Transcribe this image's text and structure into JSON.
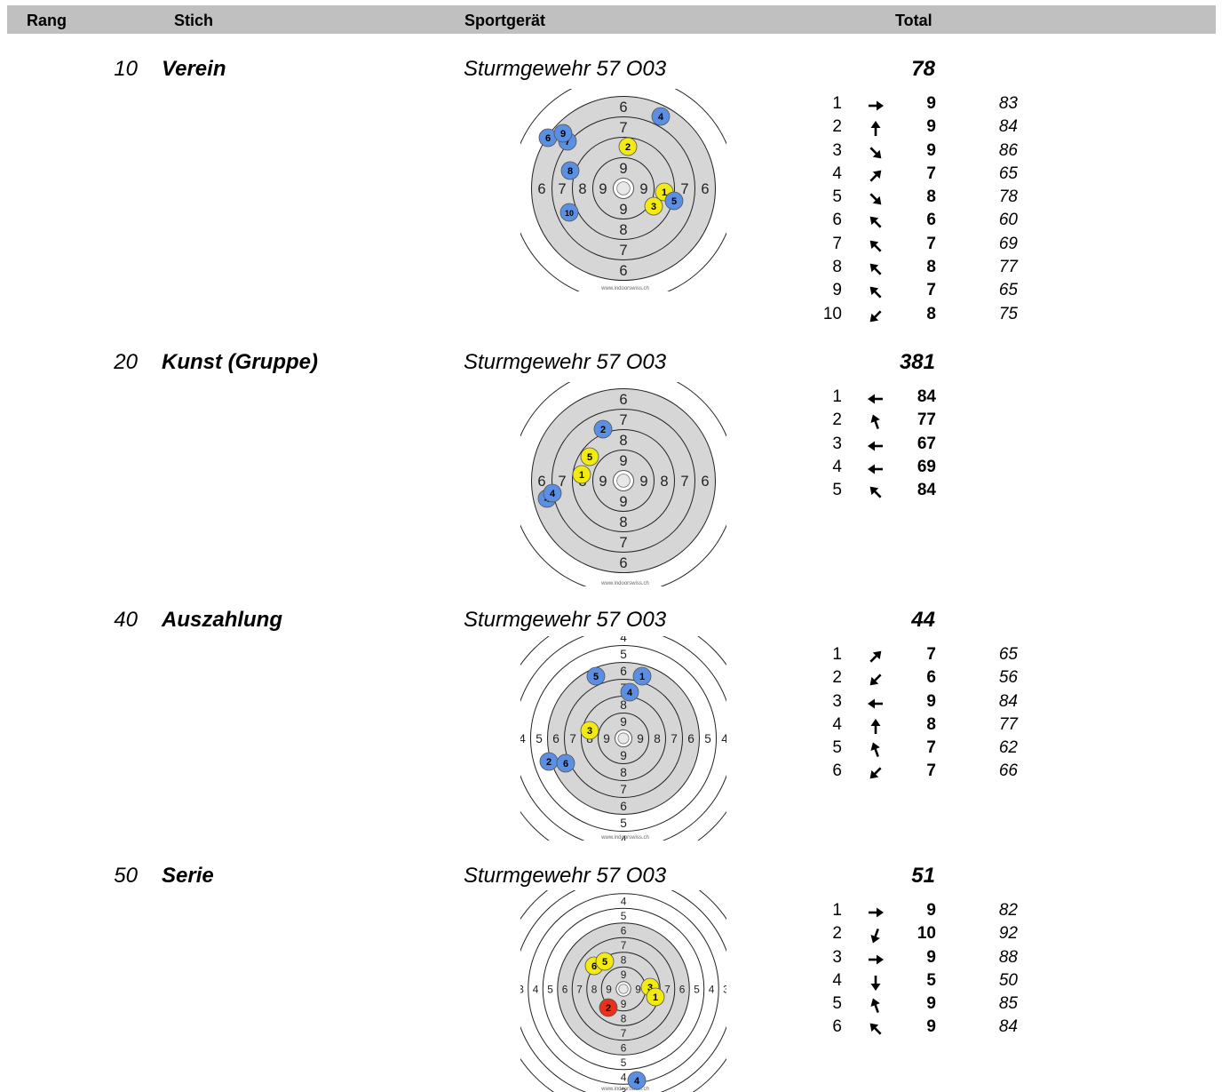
{
  "header": {
    "rang": "Rang",
    "stich": "Stich",
    "sportgeraet": "Sportgerät",
    "total": "Total"
  },
  "colors": {
    "header_bg": "#c0c0c0",
    "target_fill": "#d6d6d6",
    "shot_blue": "#5a8fe3",
    "shot_yellow": "#f2ea10",
    "shot_red": "#e8301a"
  },
  "target_watermark": "www.indoorswiss.ch",
  "sections": [
    {
      "rank": "10",
      "stich": "Verein",
      "device": "Sturmgewehr 57 O03",
      "total": "78",
      "shots": [
        {
          "n": "1",
          "dir": "E",
          "value": "9",
          "score": "83"
        },
        {
          "n": "2",
          "dir": "N",
          "value": "9",
          "score": "84"
        },
        {
          "n": "3",
          "dir": "SE",
          "value": "9",
          "score": "86"
        },
        {
          "n": "4",
          "dir": "NE",
          "value": "7",
          "score": "65"
        },
        {
          "n": "5",
          "dir": "SE",
          "value": "8",
          "score": "78"
        },
        {
          "n": "6",
          "dir": "NW",
          "value": "6",
          "score": "60"
        },
        {
          "n": "7",
          "dir": "NW",
          "value": "7",
          "score": "69"
        },
        {
          "n": "8",
          "dir": "NW",
          "value": "8",
          "score": "77"
        },
        {
          "n": "9",
          "dir": "NW",
          "value": "7",
          "score": "65"
        },
        {
          "n": "10",
          "dir": "SW",
          "value": "8",
          "score": "75"
        }
      ]
    },
    {
      "rank": "20",
      "stich": "Kunst (Gruppe)",
      "device": "Sturmgewehr 57 O03",
      "total": "381",
      "shots": [
        {
          "n": "1",
          "dir": "W",
          "value": "84",
          "score": ""
        },
        {
          "n": "2",
          "dir": "NNW",
          "value": "77",
          "score": ""
        },
        {
          "n": "3",
          "dir": "W",
          "value": "67",
          "score": ""
        },
        {
          "n": "4",
          "dir": "W",
          "value": "69",
          "score": ""
        },
        {
          "n": "5",
          "dir": "NW",
          "value": "84",
          "score": ""
        }
      ]
    },
    {
      "rank": "40",
      "stich": "Auszahlung",
      "device": "Sturmgewehr 57 O03",
      "total": "44",
      "shots": [
        {
          "n": "1",
          "dir": "NE",
          "value": "7",
          "score": "65"
        },
        {
          "n": "2",
          "dir": "SW",
          "value": "6",
          "score": "56"
        },
        {
          "n": "3",
          "dir": "W",
          "value": "9",
          "score": "84"
        },
        {
          "n": "4",
          "dir": "N",
          "value": "8",
          "score": "77"
        },
        {
          "n": "5",
          "dir": "NNW",
          "value": "7",
          "score": "62"
        },
        {
          "n": "6",
          "dir": "SW",
          "value": "7",
          "score": "66"
        }
      ]
    },
    {
      "rank": "50",
      "stich": "Serie",
      "device": "Sturmgewehr 57 O03",
      "total": "51",
      "shots": [
        {
          "n": "1",
          "dir": "E",
          "value": "9",
          "score": "82"
        },
        {
          "n": "2",
          "dir": "SSW",
          "value": "10",
          "score": "92"
        },
        {
          "n": "3",
          "dir": "E",
          "value": "9",
          "score": "88"
        },
        {
          "n": "4",
          "dir": "S",
          "value": "5",
          "score": "50"
        },
        {
          "n": "5",
          "dir": "NNW",
          "value": "9",
          "score": "85"
        },
        {
          "n": "6",
          "dir": "NW",
          "value": "9",
          "score": "84"
        }
      ]
    }
  ]
}
